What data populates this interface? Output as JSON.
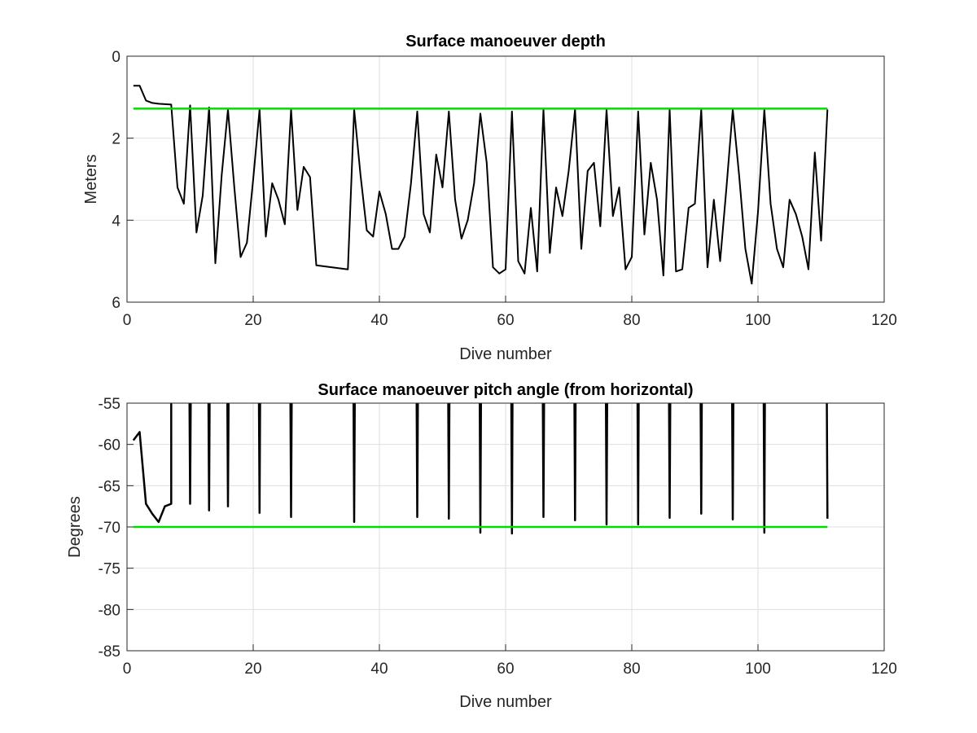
{
  "chart_data": [
    {
      "type": "line",
      "title": "Surface manoeuver depth",
      "xlabel": "Dive number",
      "ylabel": "Meters",
      "xlim": [
        0,
        120
      ],
      "ylim": [
        0,
        6
      ],
      "y_reversed": true,
      "grid": true,
      "xticks": [
        "0",
        "20",
        "40",
        "60",
        "80",
        "100",
        "120"
      ],
      "yticks": [
        "0",
        "2",
        "4",
        "6"
      ],
      "xtick_values": [
        0,
        20,
        40,
        60,
        80,
        100,
        120
      ],
      "ytick_values": [
        0,
        2,
        4,
        6
      ],
      "series": [
        {
          "color": "#000000",
          "x": [
            1,
            2,
            3,
            4,
            5,
            6,
            7,
            8,
            9,
            10,
            11,
            12,
            13,
            14,
            15,
            16,
            17,
            18,
            19,
            20,
            21,
            22,
            23,
            24,
            25,
            26,
            27,
            28,
            29,
            30,
            31,
            32,
            33,
            34,
            35,
            36,
            37,
            38,
            39,
            40,
            41,
            42,
            43,
            44,
            45,
            46,
            47,
            48,
            49,
            50,
            51,
            52,
            53,
            54,
            55,
            56,
            57,
            58,
            59,
            60,
            61,
            62,
            63,
            64,
            65,
            66,
            67,
            68,
            69,
            70,
            71,
            72,
            73,
            74,
            75,
            76,
            77,
            78,
            79,
            80,
            81,
            82,
            83,
            84,
            85,
            86,
            87,
            88,
            89,
            90,
            91,
            92,
            93,
            94,
            95,
            96,
            97,
            98,
            99,
            100,
            101,
            102,
            103,
            104,
            105,
            106,
            107,
            108,
            109,
            110,
            111
          ],
          "y": [
            0.72,
            0.72,
            1.08,
            1.14,
            1.16,
            1.17,
            1.18,
            3.2,
            3.6,
            1.2,
            4.3,
            3.4,
            1.25,
            5.05,
            2.9,
            1.3,
            3.2,
            4.9,
            4.55,
            3.0,
            1.3,
            4.4,
            3.1,
            3.5,
            4.1,
            1.3,
            3.75,
            2.7,
            2.95,
            5.1,
            5.12,
            5.14,
            5.16,
            5.18,
            5.2,
            1.3,
            2.9,
            4.25,
            4.4,
            3.3,
            3.85,
            4.7,
            4.7,
            4.4,
            3.1,
            1.35,
            3.85,
            4.3,
            2.4,
            3.2,
            1.35,
            3.5,
            4.45,
            4.0,
            3.1,
            1.4,
            2.6,
            5.15,
            5.3,
            5.2,
            1.35,
            5.0,
            5.3,
            3.7,
            5.25,
            1.3,
            4.8,
            3.2,
            3.9,
            2.8,
            1.3,
            4.7,
            2.8,
            2.6,
            4.15,
            1.3,
            3.9,
            3.2,
            5.2,
            4.9,
            1.35,
            4.35,
            2.6,
            3.5,
            5.35,
            1.3,
            5.25,
            5.2,
            3.7,
            3.6,
            1.3,
            5.15,
            3.5,
            5.0,
            3.2,
            1.3,
            2.9,
            4.7,
            5.55,
            3.8,
            1.3,
            3.6,
            4.7,
            5.15,
            3.5,
            3.85,
            4.4,
            5.2,
            2.35,
            4.5,
            1.3
          ]
        },
        {
          "color": "#00dd00",
          "x": [
            1,
            111
          ],
          "y": [
            1.28,
            1.28
          ]
        }
      ]
    },
    {
      "type": "line",
      "title": "Surface manoeuver pitch angle (from horizontal)",
      "xlabel": "Dive number",
      "ylabel": "Degrees",
      "xlim": [
        0,
        120
      ],
      "ylim": [
        -85,
        -55
      ],
      "grid": true,
      "xticks": [
        "0",
        "20",
        "40",
        "60",
        "80",
        "100",
        "120"
      ],
      "yticks": [
        "-55",
        "-60",
        "-65",
        "-70",
        "-75",
        "-80",
        "-85"
      ],
      "xtick_values": [
        0,
        20,
        40,
        60,
        80,
        100,
        120
      ],
      "ytick_values": [
        -55,
        -60,
        -65,
        -70,
        -75,
        -80,
        -85
      ],
      "series": [
        {
          "color": "#000000",
          "x": [
            1,
            2,
            3,
            4,
            5,
            6,
            7,
            7,
            7.1,
            9.9,
            10,
            10.1,
            12.9,
            13,
            13.1,
            15.9,
            16,
            16.1,
            20.9,
            21,
            21.1,
            25.9,
            26,
            26.1,
            35.9,
            36,
            36.1,
            45.9,
            46,
            46.1,
            50.9,
            51,
            51.1,
            55.9,
            56,
            56.1,
            60.9,
            61,
            61.1,
            65.9,
            66,
            66.1,
            70.9,
            71,
            71.1,
            75.9,
            76,
            76.1,
            80.9,
            81,
            81.1,
            85.9,
            86,
            86.1,
            90.9,
            91,
            91.1,
            95.9,
            96,
            96.1,
            100.9,
            101,
            101.1,
            110.9,
            111
          ],
          "y": [
            -59.5,
            -58.5,
            -67.2,
            -68.4,
            -69.4,
            -67.5,
            -67.2,
            -54,
            -54,
            -54,
            -67.2,
            -54,
            -54,
            -68,
            -54,
            -54,
            -67.5,
            -54,
            -54,
            -68.3,
            -54,
            -54,
            -68.8,
            -54,
            -54,
            -69.4,
            -54,
            -54,
            -68.8,
            -54,
            -54,
            -69,
            -54,
            -54,
            -70.7,
            -54,
            -54,
            -70.8,
            -54,
            -54,
            -68.8,
            -54,
            -54,
            -69.2,
            -54,
            -54,
            -69.7,
            -54,
            -54,
            -69.7,
            -54,
            -54,
            -68.9,
            -54,
            -54,
            -68.4,
            -54,
            -54,
            -69.1,
            -54,
            -54,
            -70.7,
            -54,
            -54,
            -69
          ]
        },
        {
          "color": "#00dd00",
          "x": [
            1,
            111
          ],
          "y": [
            -70,
            -70
          ]
        }
      ]
    }
  ]
}
